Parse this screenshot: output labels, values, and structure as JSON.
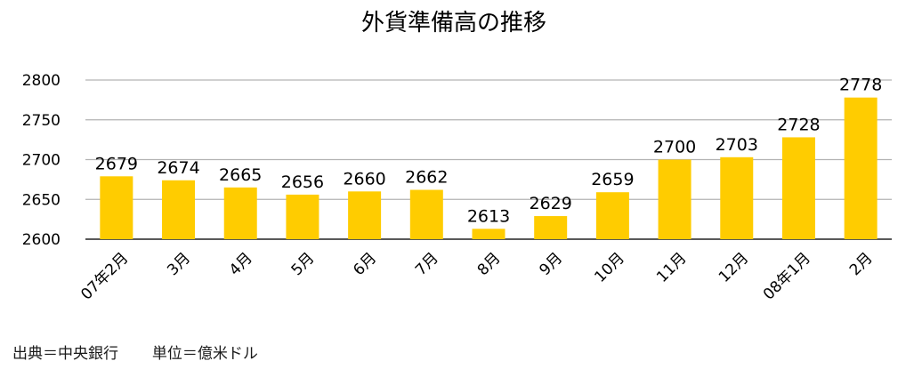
{
  "chart_data": {
    "type": "bar",
    "title": "外貨準備高の推移",
    "xlabel": "",
    "ylabel": "",
    "categories": [
      "07年2月",
      "3月",
      "4月",
      "5月",
      "6月",
      "7月",
      "8月",
      "9月",
      "10月",
      "11月",
      "12月",
      "08年1月",
      "2月"
    ],
    "values": [
      2679,
      2674,
      2665,
      2656,
      2660,
      2662,
      2613,
      2629,
      2659,
      2700,
      2703,
      2728,
      2778
    ],
    "ylim": [
      2600,
      2800
    ],
    "yticks": [
      2600,
      2650,
      2700,
      2750,
      2800
    ],
    "grid": true,
    "bar_color": "#ffcc00",
    "grid_color": "#b3b3b3"
  },
  "footnote": {
    "source": "出典＝中央銀行",
    "unit": "単位＝億米ドル"
  }
}
